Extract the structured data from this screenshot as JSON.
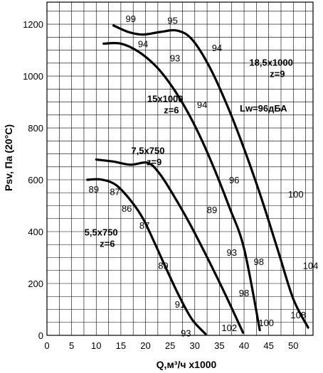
{
  "chart_data": {
    "type": "line",
    "xlabel": "Q,м³/ч x1000",
    "ylabel": "Psv, Па (20°С)",
    "xlim": [
      0,
      54
    ],
    "ylim": [
      0,
      1200
    ],
    "grid": true,
    "x_ticks": [
      "0",
      "5",
      "10",
      "15",
      "20",
      "25",
      "30",
      "35",
      "40",
      "45",
      "50"
    ],
    "y_ticks": [
      "0",
      "200",
      "400",
      "600",
      "800",
      "1000",
      "1200"
    ],
    "annotation": "Lw=96дБА",
    "series": [
      {
        "name": "5,5x750 z=6",
        "x": [
          8.2,
          11,
          14,
          17,
          19.5,
          22,
          24.5,
          27,
          29.5,
          32.2
        ],
        "y": [
          600,
          601,
          580,
          520,
          450,
          350,
          245,
          145,
          60,
          5
        ],
        "point_labels": [
          {
            "x": 9.5,
            "y": 565,
            "text": "89"
          },
          {
            "x": 13.8,
            "y": 555,
            "text": "87"
          },
          {
            "x": 16.2,
            "y": 490,
            "text": "86"
          },
          {
            "x": 19.8,
            "y": 425,
            "text": "87"
          },
          {
            "x": 23.6,
            "y": 270,
            "text": "89"
          },
          {
            "x": 27.0,
            "y": 120,
            "text": "91"
          },
          {
            "x": 28.2,
            "y": 10,
            "text": "93"
          }
        ]
      },
      {
        "name": "7,5x750 z=9",
        "x": [
          10,
          13.5,
          17,
          20.5,
          23,
          26,
          29,
          32,
          35,
          37.5,
          39.8
        ],
        "y": [
          678,
          670,
          658,
          665,
          620,
          530,
          430,
          320,
          205,
          105,
          10
        ],
        "point_labels": [
          {
            "x": 33.5,
            "y": 485,
            "text": "89"
          },
          {
            "x": 37.5,
            "y": 320,
            "text": "93"
          },
          {
            "x": 40.0,
            "y": 165,
            "text": "98"
          },
          {
            "x": 37.0,
            "y": 30,
            "text": "102"
          }
        ]
      },
      {
        "name": "15x1000 z=6",
        "x": [
          11.5,
          15,
          18.5,
          22,
          25,
          28,
          31,
          34,
          37,
          40,
          43.2
        ],
        "y": [
          1125,
          1125,
          1095,
          1040,
          970,
          880,
          770,
          640,
          495,
          335,
          20
        ],
        "point_labels": [
          {
            "x": 19.5,
            "y": 1125,
            "text": "94"
          },
          {
            "x": 26.0,
            "y": 1070,
            "text": "93"
          },
          {
            "x": 31.5,
            "y": 890,
            "text": "94"
          },
          {
            "x": 38.0,
            "y": 600,
            "text": "96"
          },
          {
            "x": 43.0,
            "y": 285,
            "text": "98"
          },
          {
            "x": 44.5,
            "y": 50,
            "text": "100"
          }
        ]
      },
      {
        "name": "18,5x1000 z=9",
        "x": [
          13.5,
          16.5,
          19.5,
          23,
          26.5,
          29.5,
          33,
          36.5,
          40,
          43.5,
          47,
          50,
          53
        ],
        "y": [
          1195,
          1170,
          1160,
          1170,
          1175,
          1140,
          1035,
          890,
          720,
          530,
          320,
          140,
          30
        ],
        "point_labels": [
          {
            "x": 17.0,
            "y": 1222,
            "text": "99"
          },
          {
            "x": 25.5,
            "y": 1215,
            "text": "95"
          },
          {
            "x": 34.5,
            "y": 1110,
            "text": "94"
          },
          {
            "x": 50.5,
            "y": 545,
            "text": "100"
          },
          {
            "x": 53.5,
            "y": 270,
            "text": "104"
          },
          {
            "x": 51.0,
            "y": 80,
            "text": "108"
          }
        ]
      }
    ],
    "curve_labels": [
      {
        "lines": [
          "18,5x1000",
          "z=9"
        ],
        "x": 45.5,
        "y": 1040
      },
      {
        "lines": [
          "15x1000",
          "z=6"
        ],
        "x": 24.0,
        "y": 900
      },
      {
        "lines": [
          "7,5x750",
          "z=9"
        ],
        "x": 20.5,
        "y": 700
      },
      {
        "lines": [
          "5,5x750",
          "z=6"
        ],
        "x": 11.0,
        "y": 385
      }
    ]
  }
}
